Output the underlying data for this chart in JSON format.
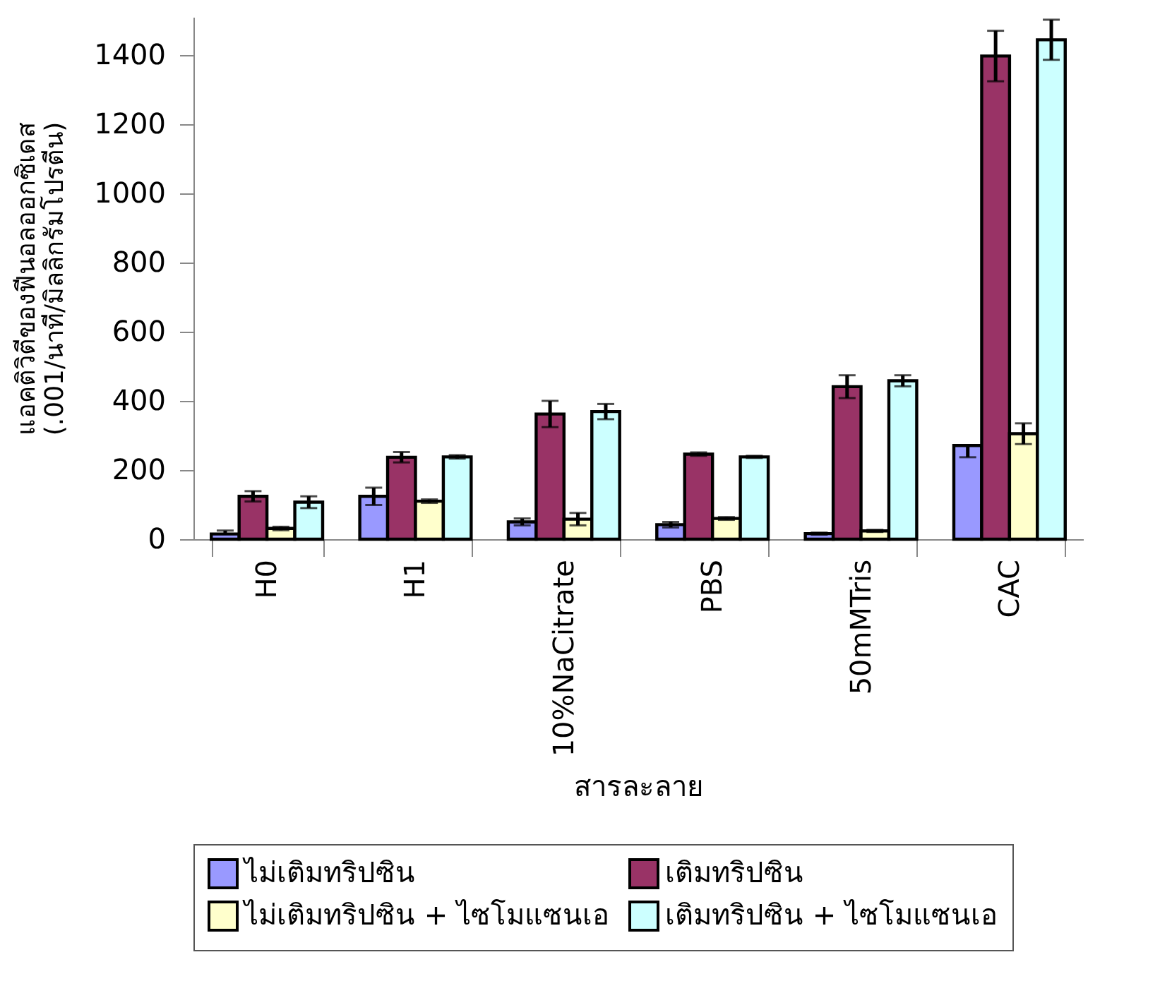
{
  "chart_data": {
    "type": "bar",
    "xlabel": "สารละลาย",
    "ylabel": "แอคติวิตีของฟีนอลออกซิเดส\n(.001/นาที/มิลลิกรัมโปรตีน)",
    "categories": [
      "H0",
      "H1",
      "10%NaCitrate",
      "PBS",
      "50mMTris",
      "CAC"
    ],
    "series": [
      {
        "name": "ไม่เติมทริปซิน",
        "color": "#9999ff",
        "values": [
          15,
          124,
          50,
          42,
          16,
          271
        ],
        "errors": [
          [
            15,
            25
          ],
          25,
          10,
          8,
          3,
          [
            237,
            271
          ]
        ]
      },
      {
        "name": "เติมทริปซิน",
        "color": "#993366",
        "values": [
          124,
          237,
          362,
          246,
          441,
          1397
        ],
        "errors": [
          15,
          15,
          38,
          5,
          33,
          73
        ]
      },
      {
        "name": "ไม่เติมทริปซิน + ไซโมแซนเอ",
        "color": "#ffffcc",
        "values": [
          31,
          110,
          58,
          60,
          24,
          305
        ],
        "errors": [
          5,
          5,
          18,
          4,
          3,
          30
        ]
      },
      {
        "name": "เติมทริปซิน + ไซโมแซนเอ",
        "color": "#ccffff",
        "values": [
          107,
          238,
          369,
          238,
          458,
          1444
        ],
        "errors": [
          17,
          5,
          22,
          3,
          16,
          58
        ]
      }
    ],
    "ylim": [
      0,
      1510
    ],
    "yticks": [
      0,
      200,
      400,
      600,
      800,
      1000,
      1200,
      1400
    ],
    "grid": false,
    "legend": "bottom"
  }
}
